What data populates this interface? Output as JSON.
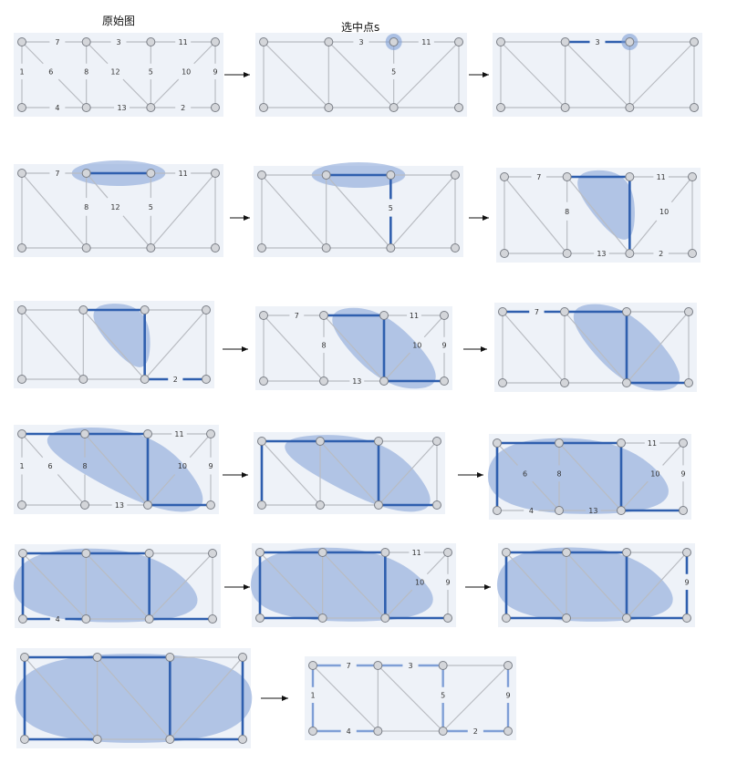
{
  "titles": {
    "original": "原始图",
    "select_s": "选中点s"
  },
  "colors": {
    "panel": "#eef2f8",
    "edge": "#b9bcc2",
    "node_fill": "#d4d6da",
    "node_stroke": "#7a7e86",
    "highlight": "#2f5fae",
    "region": "#7f9fd6",
    "arrow": "#111111"
  },
  "graph": {
    "nodes": [
      "A0",
      "A1",
      "A2",
      "A3",
      "B0",
      "B1",
      "B2",
      "B3"
    ],
    "edges": [
      {
        "id": "A0-A1",
        "w": 7
      },
      {
        "id": "A1-A2",
        "w": 3
      },
      {
        "id": "A2-A3",
        "w": 11
      },
      {
        "id": "A0-B0",
        "w": 1
      },
      {
        "id": "A0-B1",
        "w": 6
      },
      {
        "id": "A1-B1",
        "w": 8
      },
      {
        "id": "A1-B2",
        "w": 12
      },
      {
        "id": "A2-B2",
        "w": 5
      },
      {
        "id": "A3-B2",
        "w": 10
      },
      {
        "id": "A3-B3",
        "w": 9
      },
      {
        "id": "B0-B1",
        "w": 4
      },
      {
        "id": "B1-B2",
        "w": 13
      },
      {
        "id": "B2-B3",
        "w": 2
      }
    ]
  },
  "steps": [
    {
      "labels": [
        "A0-A1",
        "A1-A2",
        "A2-A3",
        "A0-B0",
        "A0-B1",
        "A1-B1",
        "A1-B2",
        "A2-B2",
        "A3-B2",
        "A3-B3",
        "B0-B1",
        "B1-B2",
        "B2-B3"
      ],
      "thick": [],
      "dashed": [],
      "region": null,
      "selected": null,
      "mst": []
    },
    {
      "labels": [
        "A1-A2",
        "A2-A3",
        "A2-B2"
      ],
      "thick": [],
      "dashed": [],
      "region": null,
      "selected": "A2",
      "mst": []
    },
    {
      "labels": [
        "A1-A2"
      ],
      "thick": [
        "A1-A2"
      ],
      "dashed": [
        "A1-A2"
      ],
      "region": null,
      "selected": "A2",
      "mst": []
    },
    {
      "labels": [
        "A0-A1",
        "A2-A3",
        "A1-B1",
        "A1-B2",
        "A2-B2"
      ],
      "thick": [
        "A1-A2"
      ],
      "dashed": [],
      "region": "r1",
      "selected": null,
      "mst": []
    },
    {
      "labels": [
        "A2-B2"
      ],
      "thick": [
        "A1-A2",
        "A2-B2"
      ],
      "dashed": [
        "A2-B2"
      ],
      "region": "r1",
      "selected": null,
      "mst": []
    },
    {
      "labels": [
        "A0-A1",
        "A2-A3",
        "A1-B1",
        "A3-B2",
        "B1-B2",
        "B2-B3"
      ],
      "thick": [
        "A1-A2",
        "A2-B2"
      ],
      "dashed": [],
      "region": "r2",
      "selected": null,
      "mst": []
    },
    {
      "labels": [
        "B2-B3"
      ],
      "thick": [
        "A1-A2",
        "A2-B2",
        "B2-B3"
      ],
      "dashed": [
        "B2-B3"
      ],
      "region": "r2",
      "selected": null,
      "mst": []
    },
    {
      "labels": [
        "A0-A1",
        "A2-A3",
        "A1-B1",
        "A3-B2",
        "A3-B3",
        "B1-B2"
      ],
      "thick": [
        "A1-A2",
        "A2-B2",
        "B2-B3"
      ],
      "dashed": [],
      "region": "r3",
      "selected": null,
      "mst": []
    },
    {
      "labels": [
        "A0-A1"
      ],
      "thick": [
        "A0-A1",
        "A1-A2",
        "A2-B2",
        "B2-B3"
      ],
      "dashed": [
        "A0-A1"
      ],
      "region": "r3",
      "selected": null,
      "mst": []
    },
    {
      "labels": [
        "A2-A3",
        "A0-B0",
        "A0-B1",
        "A1-B1",
        "A3-B2",
        "A3-B3",
        "B1-B2"
      ],
      "thick": [
        "A0-A1",
        "A1-A2",
        "A2-B2",
        "B2-B3"
      ],
      "dashed": [],
      "region": "r4",
      "selected": null,
      "mst": []
    },
    {
      "labels": [],
      "thick": [
        "A0-B0",
        "A0-A1",
        "A1-A2",
        "A2-B2",
        "B2-B3"
      ],
      "dashed": [
        "A0-B0"
      ],
      "region": "r4",
      "selected": null,
      "mst": []
    },
    {
      "labels": [
        "A2-A3",
        "A0-B1",
        "A1-B1",
        "A3-B2",
        "A3-B3",
        "B0-B1",
        "B1-B2"
      ],
      "thick": [
        "A0-B0",
        "A0-A1",
        "A1-A2",
        "A2-B2",
        "B2-B3"
      ],
      "dashed": [],
      "region": "r5",
      "selected": null,
      "mst": []
    },
    {
      "labels": [
        "B0-B1"
      ],
      "thick": [
        "A0-B0",
        "A0-A1",
        "A1-A2",
        "A2-B2",
        "B2-B3",
        "B0-B1"
      ],
      "dashed": [
        "B0-B1"
      ],
      "region": "r6",
      "selected": null,
      "mst": []
    },
    {
      "labels": [
        "A2-A3",
        "A3-B2",
        "A3-B3"
      ],
      "thick": [
        "A0-B0",
        "A0-A1",
        "A1-A2",
        "A2-B2",
        "B2-B3",
        "B0-B1"
      ],
      "dashed": [],
      "region": "r7",
      "selected": null,
      "mst": []
    },
    {
      "labels": [
        "A3-B3"
      ],
      "thick": [
        "A0-B0",
        "A0-A1",
        "A1-A2",
        "A2-B2",
        "B2-B3",
        "B0-B1",
        "A3-B3"
      ],
      "dashed": [
        "A3-B3"
      ],
      "region": "r7",
      "selected": null,
      "mst": []
    },
    {
      "labels": [],
      "thick": [
        "A0-B0",
        "A0-A1",
        "A1-A2",
        "A2-B2",
        "B2-B3",
        "B0-B1",
        "A3-B3"
      ],
      "dashed": [],
      "region": "r8",
      "selected": null,
      "mst": []
    },
    {
      "labels": [
        "A0-A1",
        "A1-A2",
        "A0-B0",
        "A2-B2",
        "A3-B3",
        "B0-B1",
        "B2-B3"
      ],
      "thick": [],
      "dashed": [],
      "region": null,
      "selected": null,
      "mst": [
        "A0-A1",
        "A1-A2",
        "A0-B0",
        "A2-B2",
        "A3-B3",
        "B0-B1",
        "B2-B3"
      ]
    }
  ]
}
